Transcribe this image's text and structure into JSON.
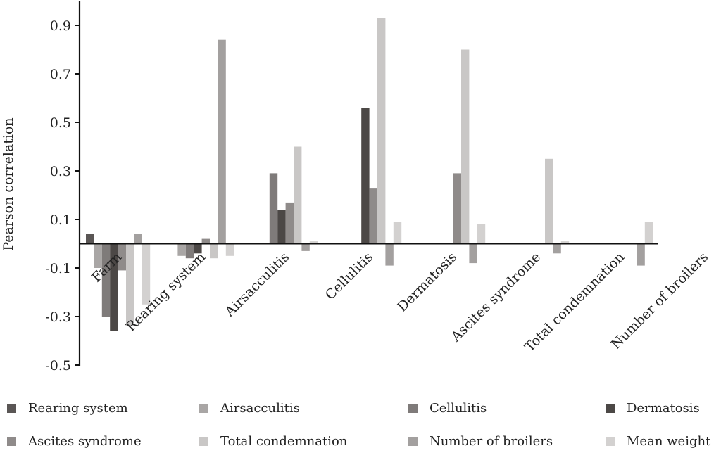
{
  "chart_data": {
    "type": "bar",
    "title": "",
    "xlabel": "",
    "ylabel": "Pearson correlation",
    "ylim": [
      -0.5,
      1.0
    ],
    "yticks": [
      "0.9",
      "0.7",
      "0.5",
      "0.3",
      "0.1",
      "-0.1",
      "-0.3",
      "-0.5"
    ],
    "ytick_values": [
      0.9,
      0.7,
      0.5,
      0.3,
      0.1,
      -0.1,
      -0.3,
      -0.5
    ],
    "grid": false,
    "legend_position": "bottom",
    "categories": [
      "Farm",
      "Rearing system",
      "Airsacculitis",
      "Cellulitis",
      "Dermatosis",
      "Ascites syndrome",
      "Total condemnation",
      "Number of broilers"
    ],
    "series": [
      {
        "name": "Rearing system",
        "color": "#5a5655",
        "values": [
          0.04,
          null,
          null,
          null,
          null,
          null,
          null,
          null
        ]
      },
      {
        "name": "Airsacculitis",
        "color": "#a9a6a5",
        "values": [
          -0.1,
          -0.05,
          null,
          null,
          null,
          null,
          null,
          null
        ]
      },
      {
        "name": "Cellulitis",
        "color": "#7f7b7a",
        "values": [
          -0.3,
          -0.06,
          0.29,
          null,
          null,
          null,
          null,
          null
        ]
      },
      {
        "name": "Dermatosis",
        "color": "#4c4846",
        "values": [
          -0.36,
          -0.04,
          0.14,
          0.56,
          null,
          null,
          null,
          null
        ]
      },
      {
        "name": "Ascites syndrome",
        "color": "#8f8b8a",
        "values": [
          -0.11,
          0.02,
          0.17,
          0.23,
          0.29,
          null,
          null,
          null
        ]
      },
      {
        "name": "Total condemnation",
        "color": "#c9c7c6",
        "values": [
          -0.34,
          -0.06,
          0.4,
          0.93,
          0.8,
          0.35,
          null,
          null
        ]
      },
      {
        "name": "Number of broilers",
        "color": "#a3a09f",
        "values": [
          0.04,
          0.84,
          -0.03,
          -0.09,
          -0.08,
          -0.04,
          -0.09,
          null
        ]
      },
      {
        "name": "Mean weight",
        "color": "#d3d1d0",
        "values": [
          -0.25,
          -0.05,
          0.01,
          0.09,
          0.08,
          0.01,
          0.09,
          null
        ]
      }
    ]
  }
}
